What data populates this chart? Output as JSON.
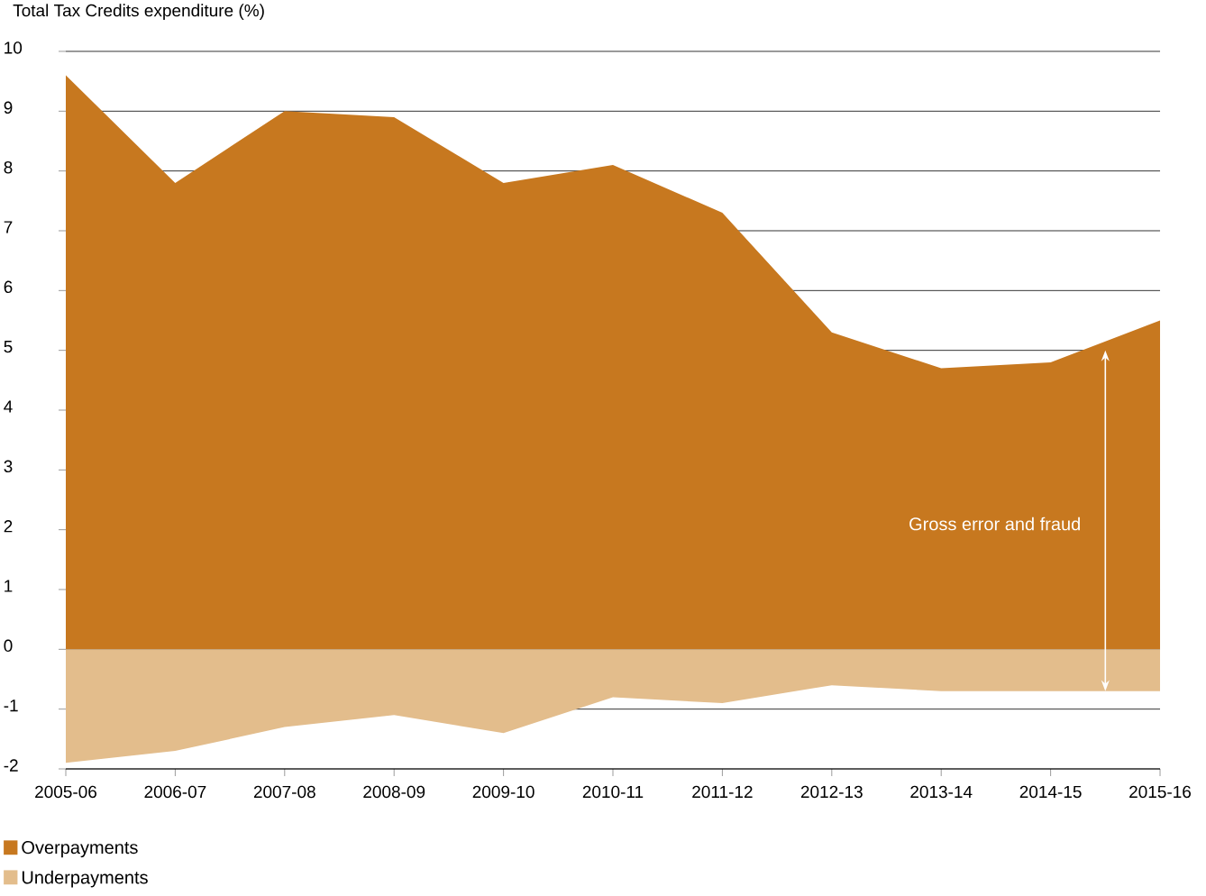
{
  "chart_data": {
    "type": "area",
    "ylabel": "Total Tax Credits expenditure (%)",
    "categories": [
      "2005-06",
      "2006-07",
      "2007-08",
      "2008-09",
      "2009-10",
      "2010-11",
      "2011-12",
      "2012-13",
      "2013-14",
      "2014-15",
      "2015-16"
    ],
    "series": [
      {
        "name": "Overpayments",
        "color": "#c7781f",
        "values": [
          9.6,
          7.8,
          9.0,
          8.9,
          7.8,
          8.1,
          7.3,
          5.3,
          4.7,
          4.8,
          5.5
        ]
      },
      {
        "name": "Underpayments",
        "color": "#e3bd8c",
        "values": [
          -1.9,
          -1.7,
          -1.3,
          -1.1,
          -1.4,
          -0.8,
          -0.9,
          -0.6,
          -0.7,
          -0.7,
          -0.7
        ]
      }
    ],
    "ylim": [
      -2,
      10
    ],
    "yticks": [
      -2,
      -1,
      0,
      1,
      2,
      3,
      4,
      5,
      6,
      7,
      8,
      9,
      10
    ],
    "grid": "y",
    "legend": "bottom left",
    "annotations": [
      "Gross error and fraud"
    ]
  }
}
